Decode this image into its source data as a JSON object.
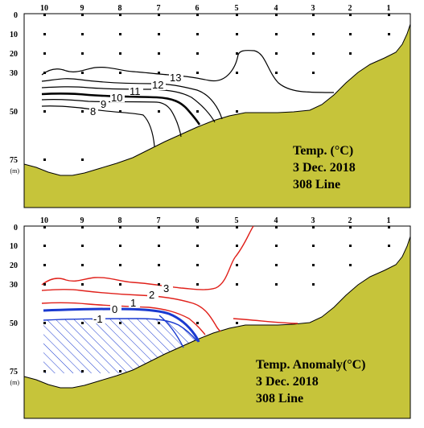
{
  "panels": [
    {
      "id": "temperature",
      "station_labels": [
        "10",
        "9",
        "8",
        "7",
        "6",
        "5",
        "4",
        "3",
        "2",
        "1"
      ],
      "depth_labels": [
        "0",
        "10",
        "20",
        "30",
        "50",
        "75"
      ],
      "depth_unit": "(m)",
      "caption": [
        "Temp. (°C)",
        "3 Dec. 2018",
        "308 Line"
      ],
      "contour_labels": [
        "13",
        "12",
        "11",
        "10",
        "9",
        "8"
      ],
      "colors": {
        "terrain": "#c6c43a",
        "contour": "#000000"
      }
    },
    {
      "id": "anomaly",
      "station_labels": [
        "10",
        "9",
        "8",
        "7",
        "6",
        "5",
        "4",
        "3",
        "2",
        "1"
      ],
      "depth_labels": [
        "0",
        "10",
        "20",
        "30",
        "50",
        "75"
      ],
      "depth_unit": "(m)",
      "caption": [
        "Temp. Anomaly(°C)",
        "3 Dec. 2018",
        "308 Line"
      ],
      "contour_labels": [
        "3",
        "2",
        "1",
        "0",
        "-1"
      ],
      "colors": {
        "terrain": "#c6c43a",
        "positive": "#e0201a",
        "negative": "#1a3ad0"
      }
    }
  ]
}
